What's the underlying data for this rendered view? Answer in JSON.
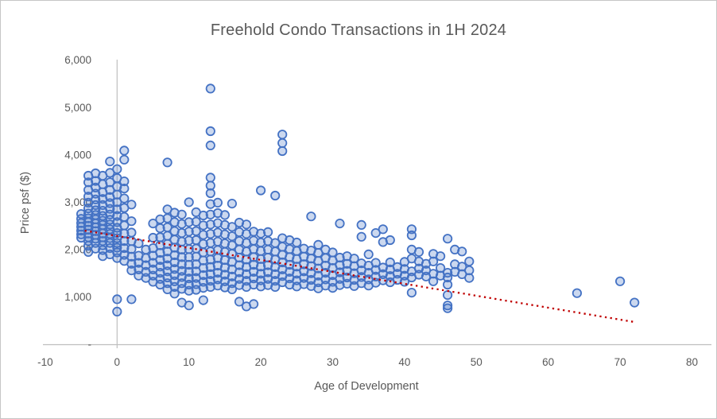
{
  "chart_data": {
    "type": "scatter",
    "title": "Freehold Condo Transactions in 1H 2024",
    "xlabel": "Age of Development",
    "ylabel": "Price psf ($)",
    "xlim": [
      -10,
      80
    ],
    "ylim": [
      0,
      6000
    ],
    "grid": "single vertical axis line at x=0, no other gridlines",
    "legend": "none",
    "x_ticks": [
      -10,
      0,
      10,
      20,
      30,
      40,
      50,
      60,
      70,
      80
    ],
    "x_tick_labels": [
      "-10",
      "0",
      "10",
      "20",
      "30",
      "40",
      "50",
      "60",
      "70",
      "80"
    ],
    "y_ticks": [
      0,
      1000,
      2000,
      3000,
      4000,
      5000,
      6000
    ],
    "y_tick_labels": [
      "-",
      "1,000",
      "2,000",
      "3,000",
      "4,000",
      "5,000",
      "6,000"
    ],
    "trendline": {
      "type": "linear",
      "style": "dotted",
      "color": "#C00000",
      "start": [
        -4.5,
        2400
      ],
      "end": [
        72,
        470
      ]
    },
    "series": [
      {
        "name": "Freehold condo transactions",
        "marker": "circle",
        "stroke_color": "#4472C4",
        "fill_color": "rgba(68,114,196,0.28)",
        "points_by_age": [
          [
            -5,
            [
              2250,
              2320,
              2400,
              2480,
              2560,
              2650,
              2750
            ]
          ],
          [
            -4,
            [
              1950,
              2080,
              2180,
              2260,
              2340,
              2420,
              2500,
              2580,
              2660,
              2760,
              2870,
              2990,
              3120,
              3260,
              3420,
              3560
            ]
          ],
          [
            -3,
            [
              2020,
              2140,
              2230,
              2310,
              2390,
              2470,
              2550,
              2640,
              2730,
              2830,
              2940,
              3060,
              3180,
              3310,
              3450,
              3610
            ]
          ],
          [
            -2,
            [
              1860,
              1990,
              2090,
              2180,
              2260,
              2340,
              2430,
              2520,
              2610,
              2710,
              2820,
              2940,
              3070,
              3210,
              3380,
              3560
            ]
          ],
          [
            -1,
            [
              1900,
              2030,
              2140,
              2240,
              2330,
              2430,
              2530,
              2630,
              2740,
              2860,
              2980,
              3110,
              3260,
              3420,
              3620,
              3860
            ]
          ],
          [
            0,
            [
              690,
              950,
              1820,
              1940,
              2040,
              2140,
              2240,
              2350,
              2460,
              2580,
              2710,
              2850,
              3000,
              3160,
              3330,
              3510,
              3700
            ]
          ],
          [
            1,
            [
              1760,
              1890,
              2030,
              2180,
              2340,
              2510,
              2690,
              2880,
              3080,
              3290,
              3440,
              3900,
              4090
            ]
          ],
          [
            2,
            [
              950,
              1560,
              1700,
              1850,
              2010,
              2180,
              2360,
              2600,
              2950
            ]
          ],
          [
            3,
            [
              1450,
              1580,
              1720,
              1870,
              2130
            ]
          ],
          [
            4,
            [
              1400,
              1530,
              1670,
              1820,
              2000
            ]
          ],
          [
            5,
            [
              1320,
              1450,
              1580,
              1720,
              1870,
              2030,
              2250,
              2550
            ]
          ],
          [
            6,
            [
              1260,
              1380,
              1510,
              1640,
              1780,
              1930,
              2090,
              2260,
              2450,
              2640
            ]
          ],
          [
            7,
            [
              1160,
              1290,
              1410,
              1540,
              1670,
              1810,
              1960,
              2120,
              2290,
              2470,
              2660,
              2850,
              3840
            ]
          ],
          [
            8,
            [
              1070,
              1210,
              1330,
              1460,
              1590,
              1730,
              1880,
              2040,
              2210,
              2390,
              2580,
              2780
            ]
          ],
          [
            9,
            [
              880,
              1170,
              1290,
              1420,
              1550,
              1690,
              1840,
              2000,
              2170,
              2350,
              2540,
              2740
            ]
          ],
          [
            10,
            [
              820,
              1130,
              1260,
              1390,
              1530,
              1680,
              1840,
              2010,
              2190,
              2380,
              2580,
              3000
            ]
          ],
          [
            11,
            [
              1150,
              1270,
              1400,
              1540,
              1690,
              1850,
              2020,
              2200,
              2390,
              2590,
              2790
            ]
          ],
          [
            12,
            [
              930,
              1190,
              1320,
              1460,
              1610,
              1770,
              1940,
              2120,
              2310,
              2510,
              2720
            ]
          ],
          [
            13,
            [
              1210,
              1340,
              1480,
              1630,
              1790,
              1960,
              2140,
              2330,
              2530,
              2740,
              2960,
              3190,
              3350,
              3520,
              4200,
              4500,
              5400
            ]
          ],
          [
            14,
            [
              1240,
              1370,
              1510,
              1660,
              1820,
              1990,
              2170,
              2360,
              2560,
              2770,
              2990
            ]
          ],
          [
            15,
            [
              1200,
              1330,
              1470,
              1620,
              1780,
              1950,
              2130,
              2320,
              2520,
              2730
            ]
          ],
          [
            16,
            [
              1160,
              1290,
              1430,
              1580,
              1740,
              1910,
              2090,
              2280,
              2480,
              2970
            ]
          ],
          [
            17,
            [
              900,
              1250,
              1380,
              1520,
              1670,
              1830,
              2000,
              2180,
              2370,
              2570
            ]
          ],
          [
            18,
            [
              800,
              1210,
              1340,
              1480,
              1630,
              1790,
              1960,
              2140,
              2330,
              2530
            ]
          ],
          [
            19,
            [
              850,
              1260,
              1390,
              1530,
              1680,
              1840,
              2010,
              2190,
              2380
            ]
          ],
          [
            20,
            [
              1220,
              1350,
              1490,
              1640,
              1800,
              1970,
              2150,
              2340,
              3250
            ]
          ],
          [
            21,
            [
              1250,
              1380,
              1520,
              1670,
              1830,
              2000,
              2180,
              2370
            ]
          ],
          [
            22,
            [
              1210,
              1340,
              1480,
              1630,
              1790,
              1960,
              2140,
              3140
            ]
          ],
          [
            23,
            [
              1310,
              1440,
              1580,
              1730,
              1890,
              2060,
              2240,
              4080,
              4250,
              4430
            ]
          ],
          [
            24,
            [
              1260,
              1390,
              1530,
              1680,
              1840,
              2010,
              2200
            ]
          ],
          [
            25,
            [
              1220,
              1350,
              1490,
              1640,
              1800,
              1970,
              2150
            ]
          ],
          [
            26,
            [
              1270,
              1400,
              1540,
              1690,
              1850,
              2020
            ]
          ],
          [
            27,
            [
              1230,
              1360,
              1500,
              1650,
              1810,
              1980,
              2700
            ]
          ],
          [
            28,
            [
              1180,
              1310,
              1450,
              1600,
              1760,
              1930,
              2100
            ]
          ],
          [
            29,
            [
              1240,
              1370,
              1510,
              1660,
              1820,
              2000
            ]
          ],
          [
            30,
            [
              1190,
              1320,
              1460,
              1610,
              1770,
              1940
            ]
          ],
          [
            31,
            [
              1250,
              1380,
              1520,
              1670,
              1830,
              2550
            ]
          ],
          [
            32,
            [
              1280,
              1410,
              1550,
              1700,
              1860
            ]
          ],
          [
            33,
            [
              1230,
              1360,
              1500,
              1650,
              1810
            ]
          ],
          [
            34,
            [
              1290,
              1420,
              1560,
              1710,
              2270,
              2520
            ]
          ],
          [
            35,
            [
              1240,
              1370,
              1510,
              1660,
              1900
            ]
          ],
          [
            36,
            [
              1300,
              1430,
              1570,
              1720,
              2350
            ]
          ],
          [
            37,
            [
              1350,
              1480,
              1620,
              2160,
              2430
            ]
          ],
          [
            38,
            [
              1310,
              1440,
              1580,
              1730,
              2200
            ]
          ],
          [
            39,
            [
              1360,
              1490,
              1630
            ]
          ],
          [
            40,
            [
              1320,
              1450,
              1590,
              1740
            ]
          ],
          [
            41,
            [
              1090,
              1410,
              1540,
              1810,
              2000,
              2300,
              2430
            ]
          ],
          [
            42,
            [
              1470,
              1600,
              1750,
              1950
            ]
          ],
          [
            43,
            [
              1430,
              1560,
              1700
            ]
          ],
          [
            44,
            [
              1330,
              1490,
              1750,
              1910
            ]
          ],
          [
            45,
            [
              1450,
              1610,
              1860
            ]
          ],
          [
            46,
            [
              760,
              820,
              1040,
              1260,
              1410,
              1510,
              2230
            ]
          ],
          [
            47,
            [
              1530,
              1690,
              2000
            ]
          ],
          [
            48,
            [
              1480,
              1640,
              1960
            ]
          ],
          [
            49,
            [
              1400,
              1560,
              1750
            ]
          ],
          [
            64,
            [
              1080
            ]
          ],
          [
            70,
            [
              1330
            ]
          ],
          [
            72,
            [
              880
            ]
          ]
        ]
      }
    ]
  },
  "colors": {
    "title_text": "#595959",
    "axis_text": "#595959",
    "axis_line": "#BFBFBF",
    "marker_stroke": "#4472C4",
    "marker_fill": "rgba(68,114,196,0.28)",
    "trendline": "#C00000",
    "background": "#FFFFFF",
    "frame_border": "#C6C6C6"
  }
}
